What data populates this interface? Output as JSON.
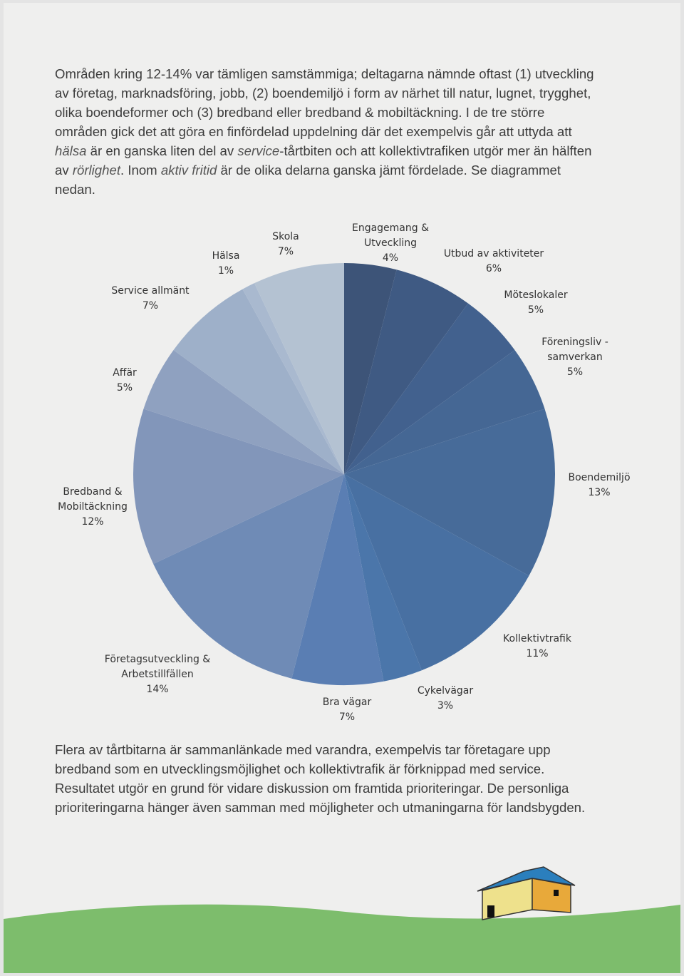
{
  "intro": [
    "Områden kring 12-14% var tämligen samstämmiga; deltagarna nämnde oftast (1) utveckling av företag, marknadsföring, jobb, (2) boendemiljö i form av närhet till natur, lugnet, trygghet, olika boendeformer och (3) bredband eller bredband & mobiltäckning. I de tre större områden gick det att göra en finfördelad uppdelning där det exempelvis går att uttyda att ",
    "hälsa",
    " är en ganska liten del av ",
    "service",
    "-tårtbiten och att kollektivtrafiken utgör mer än hälften av ",
    "rörlighet",
    ". Inom ",
    "aktiv fritid",
    " är de olika delarna ganska jämt fördelade. Se diagrammet nedan."
  ],
  "chart_data": {
    "type": "pie",
    "categories": [
      "Engagemang & Utveckling",
      "Utbud av aktiviteter",
      "Möteslokaler",
      "Föreningsliv - samverkan",
      "Boendemiljö",
      "Kollektivtrafik",
      "Cykelvägar",
      "Bra vägar",
      "Företagsutveckling & Arbetstillfällen",
      "Bredband & Mobiltäckning",
      "Affär",
      "Service allmänt",
      "Hälsa",
      "Skola"
    ],
    "values": [
      4,
      6,
      5,
      5,
      13,
      11,
      3,
      7,
      14,
      12,
      5,
      7,
      1,
      7
    ],
    "value_labels": [
      "4%",
      "6%",
      "5%",
      "5%",
      "13%",
      "11%",
      "3%",
      "7%",
      "14%",
      "12%",
      "5%",
      "7%",
      "1%",
      "7%"
    ],
    "colors": [
      "#3d5478",
      "#3f5a83",
      "#42618e",
      "#456794",
      "#476b99",
      "#4870a2",
      "#4b76aa",
      "#5a7eb3",
      "#6f8bb6",
      "#8296ba",
      "#8fa1c0",
      "#9eb0c9",
      "#a9b9cf",
      "#b4c2d2"
    ]
  },
  "outro": "Flera av tårtbitarna är sammanlänkade med varandra, exempelvis tar företagare upp bredband som en utvecklingsmöjlighet och kollektivtrafik är förknippad med service. Resultatet utgör en grund för vidare diskussion om framtida prioriteringar. De personliga prioriteringarna hänger även samman med möjligheter och utmaningarna för landsbygden."
}
